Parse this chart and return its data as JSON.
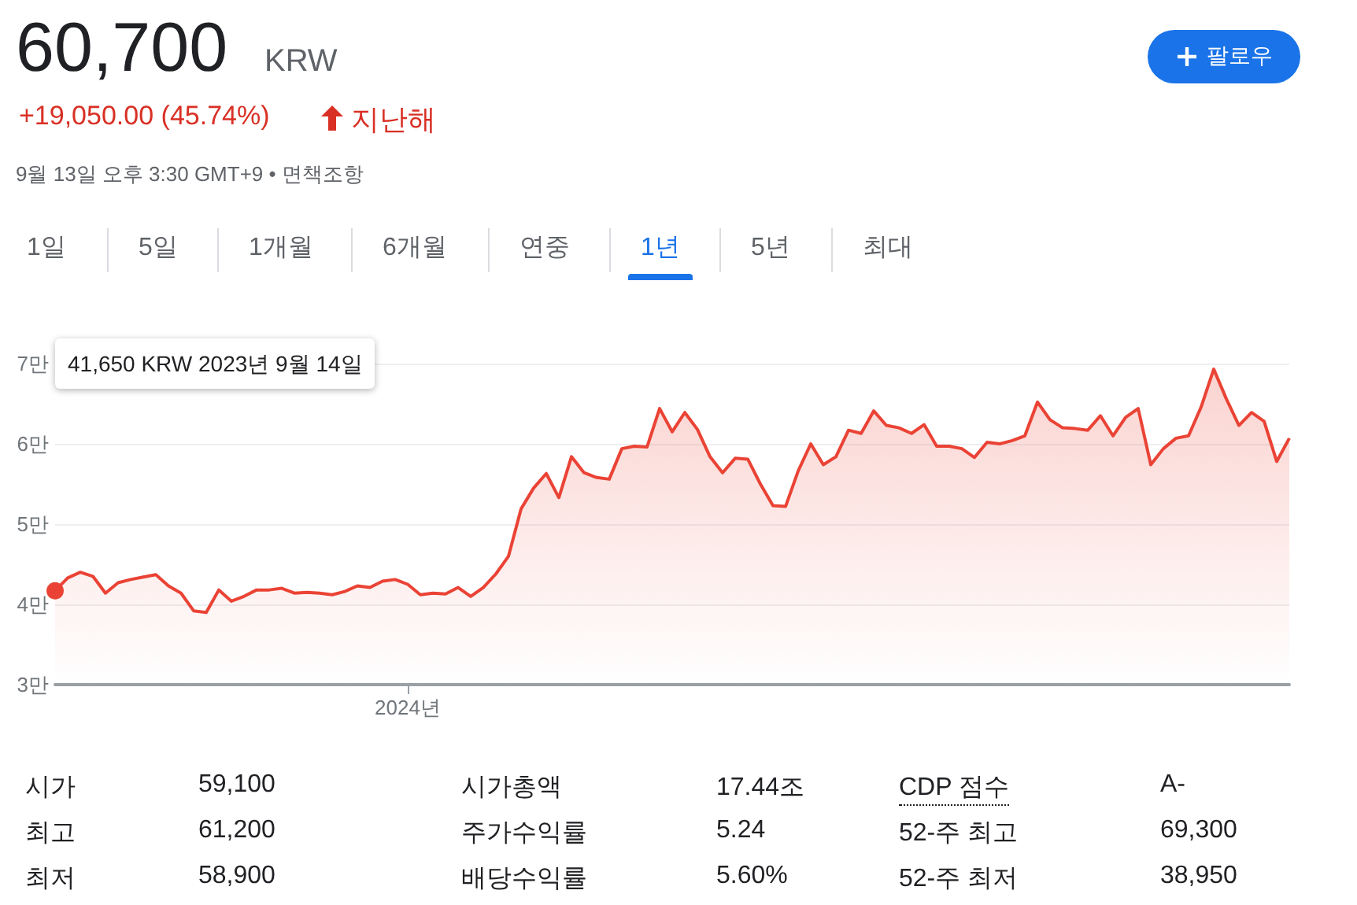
{
  "chart_data": {
    "type": "area",
    "title": "60,700",
    "subtitle": "KRW",
    "categories": [
      null,
      null,
      null,
      null,
      null,
      null,
      null,
      null,
      null,
      null,
      null,
      null,
      null,
      null,
      null,
      null,
      null,
      null,
      null,
      null,
      null,
      null,
      null,
      null,
      null,
      null,
      null,
      null,
      "2024년",
      null,
      null,
      null,
      null,
      null,
      null,
      null,
      null,
      null,
      null,
      null,
      null,
      null,
      null,
      null,
      null,
      null,
      null,
      null,
      null,
      null,
      null,
      null,
      null,
      null,
      null,
      null,
      null,
      null,
      null,
      null,
      null,
      null,
      null,
      null,
      null,
      null,
      null,
      null,
      null,
      null,
      null,
      null,
      null,
      null,
      null,
      null,
      null,
      null,
      null,
      null,
      null,
      null,
      null,
      null,
      null,
      null,
      null,
      null,
      null,
      null,
      null,
      null,
      null,
      null,
      null,
      null,
      null,
      null,
      null
    ],
    "series": [
      {
        "color": "#ea4335",
        "values": [
          4.17,
          4.33,
          4.4,
          4.35,
          4.14,
          4.27,
          4.31,
          4.34,
          4.37,
          4.23,
          4.14,
          3.92,
          3.9,
          4.18,
          4.04,
          4.1,
          4.18,
          4.18,
          4.2,
          4.14,
          4.15,
          4.14,
          4.12,
          4.16,
          4.23,
          4.21,
          4.29,
          4.31,
          4.25,
          4.12,
          4.14,
          4.13,
          4.21,
          4.1,
          4.21,
          4.38,
          4.6,
          5.19,
          5.45,
          5.63,
          5.33,
          5.84,
          5.64,
          5.58,
          5.56,
          5.94,
          5.97,
          5.96,
          6.44,
          6.15,
          6.39,
          6.18,
          5.84,
          5.64,
          5.82,
          5.81,
          5.5,
          5.23,
          5.22,
          5.66,
          6,
          5.74,
          5.84,
          6.17,
          6.13,
          6.41,
          6.23,
          6.2,
          6.13,
          6.24,
          5.97,
          5.97,
          5.94,
          5.83,
          6.02,
          6,
          6.04,
          6.1,
          6.52,
          6.3,
          6.2,
          6.19,
          6.17,
          6.35,
          6.1,
          6.33,
          6.44,
          5.74,
          5.94,
          6.07,
          6.1,
          6.46,
          6.93,
          6.56,
          6.23,
          6.39,
          6.28,
          5.78,
          6.07
        ]
      }
    ],
    "ylim": [
      3,
      7
    ],
    "yticks": [
      {
        "value": 3,
        "label": "3만"
      },
      {
        "value": 4,
        "label": "4만"
      },
      {
        "value": 5,
        "label": "5만"
      },
      {
        "value": 6,
        "label": "6만"
      },
      {
        "value": 7,
        "label": "7만"
      }
    ],
    "grid": "y",
    "annotations": [
      "+19,050.00 (45.74%)",
      "지난해",
      "9월 13일 오후 3:30 GMT+9 • 면책조항",
      "팔로우",
      "1일",
      "5일",
      "1개월",
      "6개월",
      "연중",
      "1년",
      "5년",
      "최대",
      "시가",
      "59,100",
      "시가총액",
      "17.44조",
      "CDP 점수",
      "A-",
      "최고",
      "61,200",
      "주가수익률",
      "5.24",
      "52-주 최고",
      "69,300",
      "최저",
      "58,900",
      "배당수익률",
      "5.60%",
      "52-주 최저",
      "38,950",
      "41,650 KRW  2023년 9월 14일"
    ]
  }
}
